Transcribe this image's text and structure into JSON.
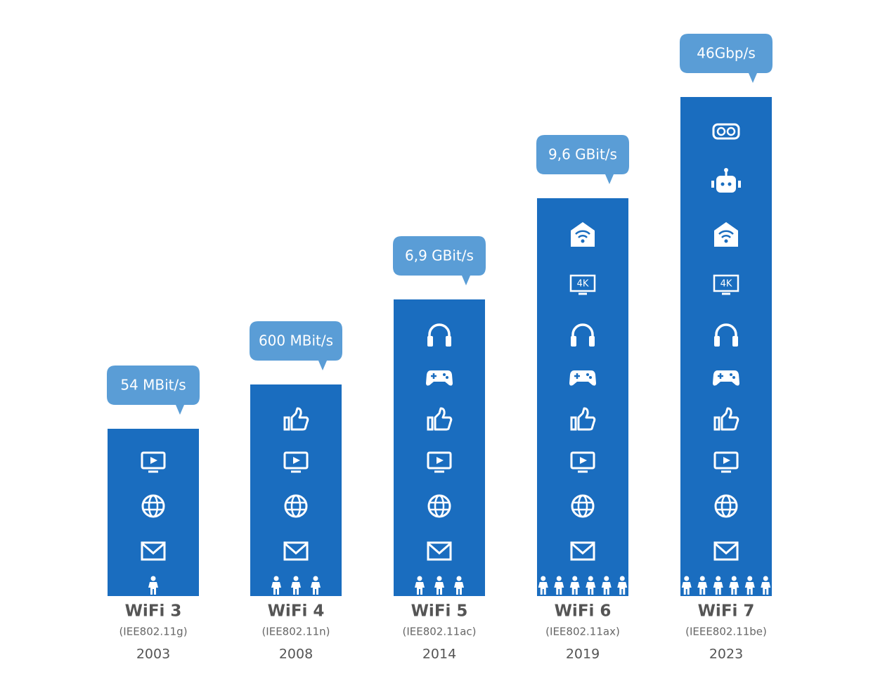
{
  "columns": [
    {
      "speed": "54 MBit/s",
      "name": "WiFi 3",
      "standard": "(IEE802.11g)",
      "year": "2003"
    },
    {
      "speed": "600 MBit/s",
      "name": "WiFi 4",
      "standard": "(IEE802.11n)",
      "year": "2008"
    },
    {
      "speed": "6,9 GBit/s",
      "name": "WiFi 5",
      "standard": "(IEE802.11ac)",
      "year": "2014"
    },
    {
      "speed": "9,6 GBit/s",
      "name": "WiFi 6",
      "standard": "(IEE802.11ax)",
      "year": "2019"
    },
    {
      "speed": "46Gbp/s",
      "name": "WiFi 7",
      "standard": "(IEEE802.11be)",
      "year": "2023"
    }
  ],
  "icon_text": "4K"
}
